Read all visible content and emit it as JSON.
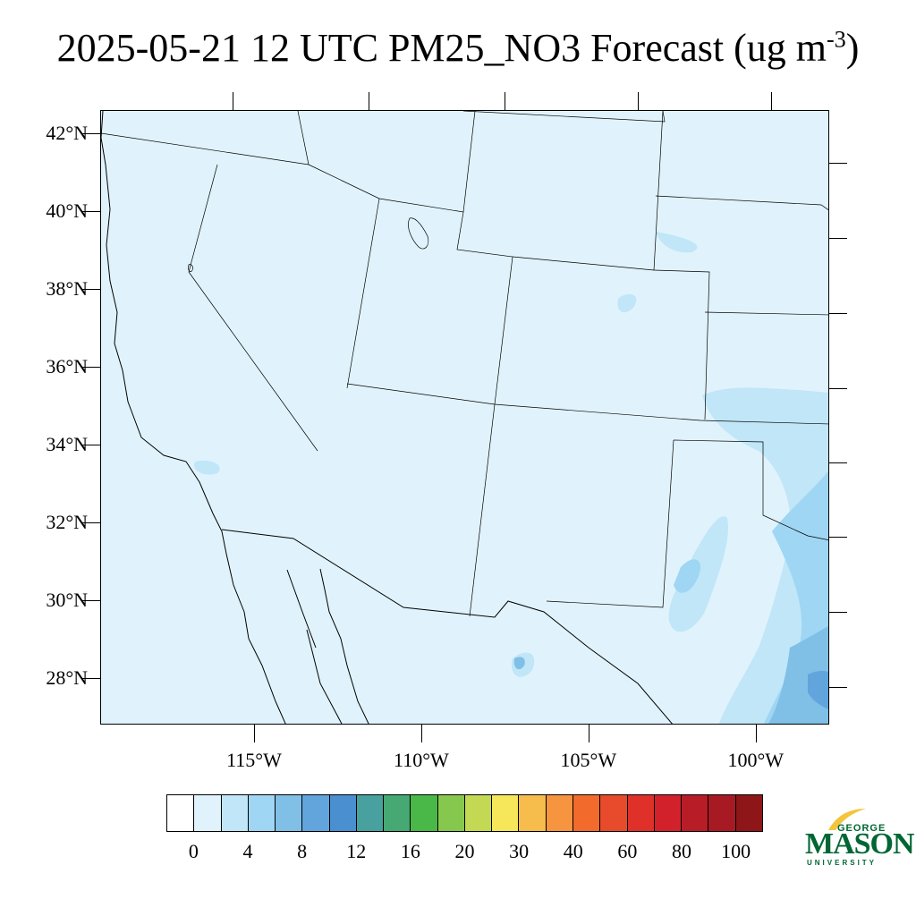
{
  "title": {
    "main": "2025-05-21 12 UTC PM25_NO3 Forecast (ug m",
    "sup": "-3",
    "close": ")"
  },
  "map": {
    "extent": {
      "lon_min": -119.6,
      "lon_max": -97.8,
      "lat_min": 26.8,
      "lat_max": 42.6
    },
    "lat_labels": [
      "42°N",
      "40°N",
      "38°N",
      "36°N",
      "34°N",
      "32°N",
      "30°N",
      "28°N"
    ],
    "lat_values": [
      42,
      40,
      38,
      36,
      34,
      32,
      30,
      28
    ],
    "lon_labels": [
      "115°W",
      "110°W",
      "105°W",
      "100°W"
    ],
    "lon_values": [
      -115,
      -110,
      -105,
      -100
    ],
    "colors": {
      "background": "#e0f3fc",
      "boundary": "#000000"
    }
  },
  "colorbar": {
    "colors": [
      "#ffffff",
      "#e0f3fc",
      "#c0e6f8",
      "#9fd6f3",
      "#80bfe6",
      "#62a5dc",
      "#4a8fcf",
      "#48a19e",
      "#46a873",
      "#49b848",
      "#86c84e",
      "#c3d954",
      "#f6e65a",
      "#f6bc4c",
      "#f6943f",
      "#f26b2d",
      "#e74b2c",
      "#df302a",
      "#d3212b",
      "#b81d27",
      "#a71a24",
      "#8e1619"
    ],
    "labels": [
      "0",
      "4",
      "8",
      "12",
      "16",
      "20",
      "30",
      "40",
      "60",
      "80",
      "100"
    ]
  },
  "logo": {
    "line1": "GEORGE",
    "line2": "MASON",
    "line3": "UNIVERSITY",
    "color": "#006633",
    "accent": "#f2c53d"
  }
}
